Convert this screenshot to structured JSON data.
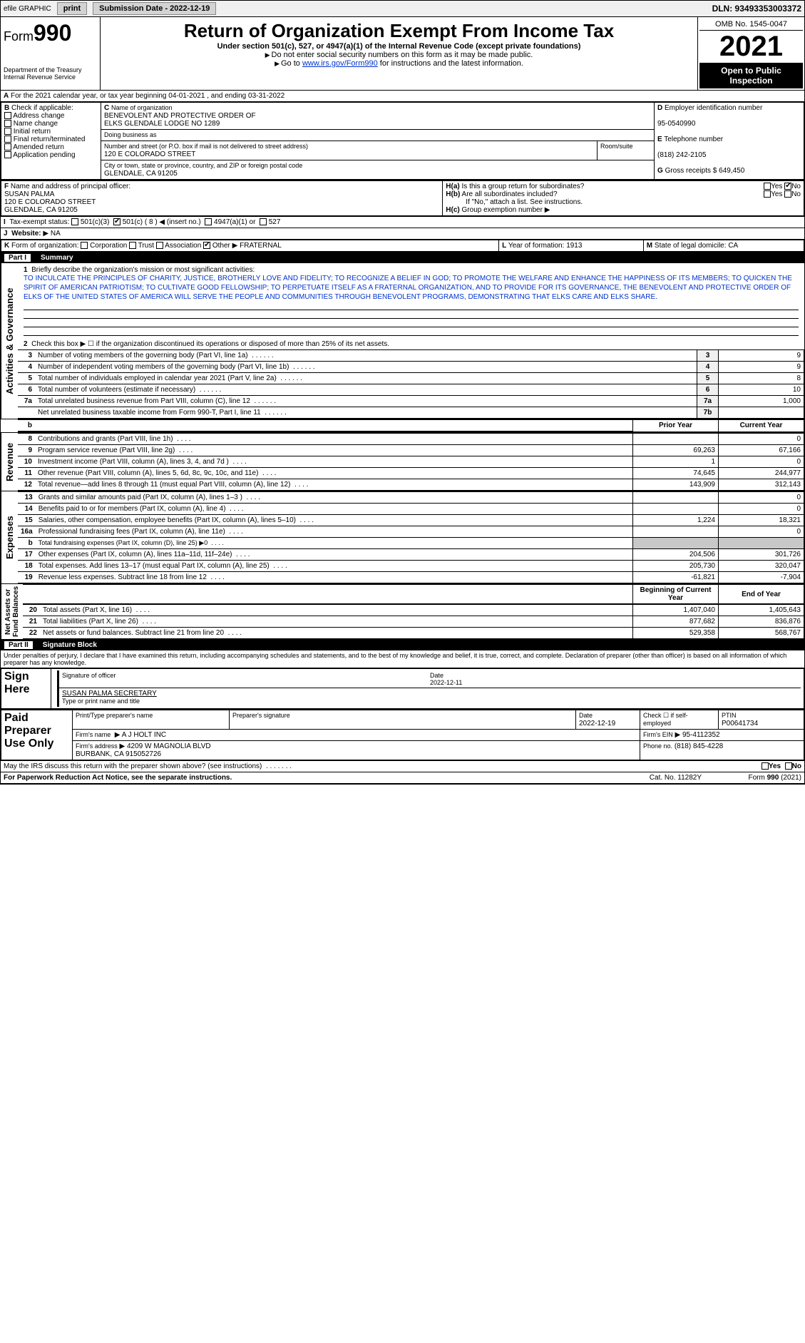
{
  "topbar": {
    "efile": "efile GRAPHIC",
    "print": "print",
    "subdate_label": "Submission Date - 2022-12-19",
    "dln": "DLN: 93493353003372"
  },
  "header": {
    "form_prefix": "Form",
    "form_num": "990",
    "title": "Return of Organization Exempt From Income Tax",
    "subtitle": "Under section 501(c), 527, or 4947(a)(1) of the Internal Revenue Code (except private foundations)",
    "note1": "Do not enter social security numbers on this form as it may be made public.",
    "note2_pre": "Go to ",
    "note2_link": "www.irs.gov/Form990",
    "note2_post": " for instructions and the latest information.",
    "dept": "Department of the Treasury\nInternal Revenue Service",
    "omb": "OMB No. 1545-0047",
    "year": "2021",
    "open": "Open to Public Inspection"
  },
  "a": {
    "text": "For the 2021 calendar year, or tax year beginning 04-01-2021   , and ending 03-31-2022"
  },
  "b": {
    "label": "Check if applicable:",
    "items": [
      "Address change",
      "Name change",
      "Initial return",
      "Final return/terminated",
      "Amended return",
      "Application pending"
    ]
  },
  "c": {
    "name_label": "Name of organization",
    "name": "BENEVOLENT AND PROTECTIVE ORDER OF\nELKS GLENDALE LODGE NO 1289",
    "dba_label": "Doing business as",
    "street_label": "Number and street (or P.O. box if mail is not delivered to street address)",
    "room_label": "Room/suite",
    "street": "120 E COLORADO STREET",
    "city_label": "City or town, state or province, country, and ZIP or foreign postal code",
    "city": "GLENDALE, CA  91205"
  },
  "d": {
    "label": "Employer identification number",
    "value": "95-0540990"
  },
  "e": {
    "label": "Telephone number",
    "value": "(818) 242-2105"
  },
  "g": {
    "label": "Gross receipts $",
    "value": "649,450"
  },
  "f": {
    "label": "Name and address of principal officer:",
    "name": "SUSAN PALMA",
    "addr1": "120 E COLORADO STREET",
    "addr2": "GLENDALE, CA  91205"
  },
  "h": {
    "a": "Is this a group return for subordinates?",
    "b": "Are all subordinates included?",
    "b_note": "If \"No,\" attach a list. See instructions.",
    "c": "Group exemption number"
  },
  "i": {
    "label": "Tax-exempt status:",
    "opts": [
      "501(c)(3)",
      "501(c) ( 8 ) ◀ (insert no.)",
      "4947(a)(1) or",
      "527"
    ]
  },
  "j": {
    "label": "Website:",
    "value": "NA"
  },
  "k": {
    "label": "Form of organization:",
    "corp": "Corporation",
    "trust": "Trust",
    "assoc": "Association",
    "other": "Other",
    "other_val": "FRATERNAL"
  },
  "l": {
    "label": "Year of formation:",
    "value": "1913"
  },
  "m": {
    "label": "State of legal domicile:",
    "value": "CA"
  },
  "part1": {
    "label": "Part I",
    "title": "Summary"
  },
  "mission": {
    "prompt": "Briefly describe the organization's mission or most significant activities:",
    "text": "TO INCULCATE THE PRINCIPLES OF CHARITY, JUSTICE, BROTHERLY LOVE AND FIDELITY; TO RECOGNIZE A BELIEF IN GOD; TO PROMOTE THE WELFARE AND ENHANCE THE HAPPINESS OF ITS MEMBERS; TO QUICKEN THE SPIRIT OF AMERICAN PATRIOTISM; TO CULTIVATE GOOD FELLOWSHIP; TO PERPETUATE ITSELF AS A FRATERNAL ORGANIZATION, AND TO PROVIDE FOR ITS GOVERNANCE, THE BENEVOLENT AND PROTECTIVE ORDER OF ELKS OF THE UNITED STATES OF AMERICA WILL SERVE THE PEOPLE AND COMMUNITIES THROUGH BENEVOLENT PROGRAMS, DEMONSTRATING THAT ELKS CARE AND ELKS SHARE."
  },
  "gov": {
    "line2": "Check this box ▶ ☐ if the organization discontinued its operations or disposed of more than 25% of its net assets.",
    "rows": [
      {
        "n": "3",
        "desc": "Number of voting members of the governing body (Part VI, line 1a)",
        "nc": "3",
        "val": "9"
      },
      {
        "n": "4",
        "desc": "Number of independent voting members of the governing body (Part VI, line 1b)",
        "nc": "4",
        "val": "9"
      },
      {
        "n": "5",
        "desc": "Total number of individuals employed in calendar year 2021 (Part V, line 2a)",
        "nc": "5",
        "val": "8"
      },
      {
        "n": "6",
        "desc": "Total number of volunteers (estimate if necessary)",
        "nc": "6",
        "val": "10"
      },
      {
        "n": "7a",
        "desc": "Total unrelated business revenue from Part VIII, column (C), line 12",
        "nc": "7a",
        "val": "1,000"
      },
      {
        "n": "",
        "desc": "Net unrelated business taxable income from Form 990-T, Part I, line 11",
        "nc": "7b",
        "val": ""
      }
    ]
  },
  "col_headers": {
    "prior": "Prior Year",
    "current": "Current Year",
    "boy": "Beginning of Current Year",
    "eoy": "End of Year"
  },
  "revenue": [
    {
      "n": "8",
      "desc": "Contributions and grants (Part VIII, line 1h)",
      "p": "",
      "c": "0"
    },
    {
      "n": "9",
      "desc": "Program service revenue (Part VIII, line 2g)",
      "p": "69,263",
      "c": "67,166"
    },
    {
      "n": "10",
      "desc": "Investment income (Part VIII, column (A), lines 3, 4, and 7d )",
      "p": "1",
      "c": "0"
    },
    {
      "n": "11",
      "desc": "Other revenue (Part VIII, column (A), lines 5, 6d, 8c, 9c, 10c, and 11e)",
      "p": "74,645",
      "c": "244,977"
    },
    {
      "n": "12",
      "desc": "Total revenue—add lines 8 through 11 (must equal Part VIII, column (A), line 12)",
      "p": "143,909",
      "c": "312,143"
    }
  ],
  "expenses": [
    {
      "n": "13",
      "desc": "Grants and similar amounts paid (Part IX, column (A), lines 1–3 )",
      "p": "",
      "c": "0"
    },
    {
      "n": "14",
      "desc": "Benefits paid to or for members (Part IX, column (A), line 4)",
      "p": "",
      "c": "0"
    },
    {
      "n": "15",
      "desc": "Salaries, other compensation, employee benefits (Part IX, column (A), lines 5–10)",
      "p": "1,224",
      "c": "18,321"
    },
    {
      "n": "16a",
      "desc": "Professional fundraising fees (Part IX, column (A), line 11e)",
      "p": "",
      "c": "0"
    },
    {
      "n": "b",
      "desc": "Total fundraising expenses (Part IX, column (D), line 25) ▶0",
      "p": "shade",
      "c": "shade"
    },
    {
      "n": "17",
      "desc": "Other expenses (Part IX, column (A), lines 11a–11d, 11f–24e)",
      "p": "204,506",
      "c": "301,726"
    },
    {
      "n": "18",
      "desc": "Total expenses. Add lines 13–17 (must equal Part IX, column (A), line 25)",
      "p": "205,730",
      "c": "320,047"
    },
    {
      "n": "19",
      "desc": "Revenue less expenses. Subtract line 18 from line 12",
      "p": "-61,821",
      "c": "-7,904"
    }
  ],
  "netassets": [
    {
      "n": "20",
      "desc": "Total assets (Part X, line 16)",
      "p": "1,407,040",
      "c": "1,405,643"
    },
    {
      "n": "21",
      "desc": "Total liabilities (Part X, line 26)",
      "p": "877,682",
      "c": "836,876"
    },
    {
      "n": "22",
      "desc": "Net assets or fund balances. Subtract line 21 from line 20",
      "p": "529,358",
      "c": "568,767"
    }
  ],
  "part2": {
    "label": "Part II",
    "title": "Signature Block"
  },
  "sig": {
    "decl": "Under penalties of perjury, I declare that I have examined this return, including accompanying schedules and statements, and to the best of my knowledge and belief, it is true, correct, and complete. Declaration of preparer (other than officer) is based on all information of which preparer has any knowledge.",
    "here": "Sign Here",
    "officer": "Signature of officer",
    "date": "2022-12-11",
    "name": "SUSAN PALMA  SECRETARY",
    "name_label": "Type or print name and title"
  },
  "paid": {
    "label": "Paid Preparer Use Only",
    "pname_label": "Print/Type preparer's name",
    "psig_label": "Preparer's signature",
    "pdate_label": "Date",
    "pdate": "2022-12-19",
    "check_label": "Check ☐ if self-employed",
    "ptin_label": "PTIN",
    "ptin": "P00641734",
    "firm_name_label": "Firm's name",
    "firm_name": "A J HOLT INC",
    "firm_ein_label": "Firm's EIN",
    "firm_ein": "95-4112352",
    "firm_addr_label": "Firm's address",
    "firm_addr": "4209 W MAGNOLIA BLVD\nBURBANK, CA  915052726",
    "phone_label": "Phone no.",
    "phone": "(818) 845-4228"
  },
  "footer": {
    "discuss": "May the IRS discuss this return with the preparer shown above? (see instructions)",
    "pra": "For Paperwork Reduction Act Notice, see the separate instructions.",
    "cat": "Cat. No. 11282Y",
    "form": "Form 990 (2021)"
  }
}
